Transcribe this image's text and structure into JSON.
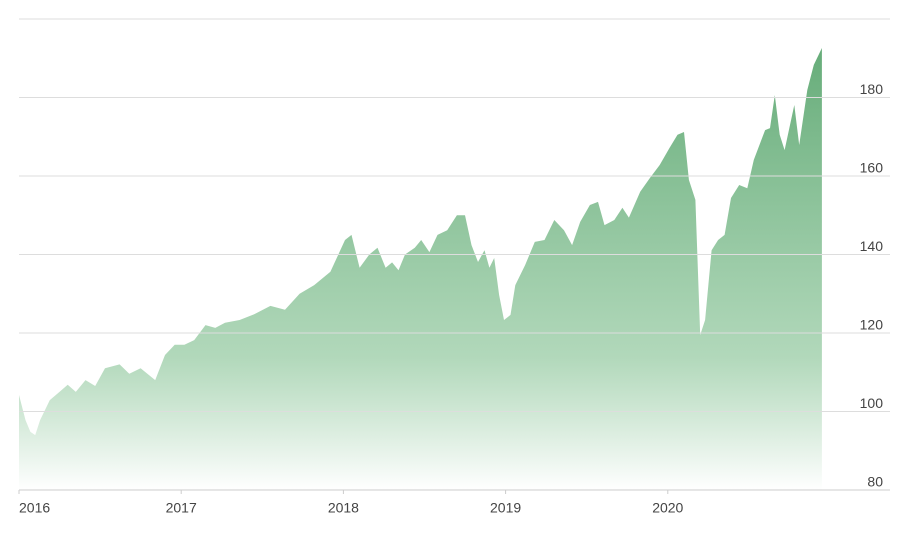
{
  "chart_data": {
    "type": "area",
    "color": "#5ea872",
    "xlim": [
      2016,
      2021.37
    ],
    "xticks": [
      2016,
      2017,
      2018,
      2019,
      2020
    ],
    "ylim": [
      80,
      200
    ],
    "yticks": [
      80,
      100,
      120,
      140,
      160,
      180
    ],
    "grid": true,
    "x": [
      2016.0,
      2016.04,
      2016.07,
      2016.1,
      2016.13,
      2016.19,
      2016.25,
      2016.3,
      2016.35,
      2016.41,
      2016.47,
      2016.53,
      2016.62,
      2016.68,
      2016.75,
      2016.84,
      2016.9,
      2016.96,
      2017.02,
      2017.08,
      2017.15,
      2017.21,
      2017.27,
      2017.36,
      2017.45,
      2017.55,
      2017.64,
      2017.73,
      2017.82,
      2017.92,
      2018.01,
      2018.05,
      2018.1,
      2018.16,
      2018.21,
      2018.26,
      2018.3,
      2018.34,
      2018.38,
      2018.44,
      2018.48,
      2018.53,
      2018.58,
      2018.64,
      2018.7,
      2018.75,
      2018.79,
      2018.83,
      2018.87,
      2018.9,
      2018.93,
      2018.96,
      2018.99,
      2019.03,
      2019.06,
      2019.12,
      2019.18,
      2019.24,
      2019.3,
      2019.36,
      2019.41,
      2019.46,
      2019.52,
      2019.57,
      2019.61,
      2019.67,
      2019.72,
      2019.76,
      2019.83,
      2019.89,
      2019.95,
      2020.01,
      2020.06,
      2020.1,
      2020.13,
      2020.17,
      2020.2,
      2020.23,
      2020.27,
      2020.31,
      2020.35,
      2020.39,
      2020.44,
      2020.49,
      2020.53,
      2020.6,
      2020.63,
      2020.66,
      2020.69,
      2020.72,
      2020.78,
      2020.81,
      2020.86,
      2020.9,
      2020.95
    ],
    "values": [
      104.2,
      97.8,
      94.8,
      94,
      97.8,
      102.9,
      105,
      106.8,
      105,
      108,
      106.5,
      111,
      112,
      109.6,
      111,
      108,
      114.4,
      117,
      117,
      118.2,
      122,
      121.3,
      122.6,
      123.3,
      124.8,
      126.9,
      125.9,
      130,
      132.2,
      135.6,
      143.7,
      145,
      136.6,
      140,
      141.7,
      136.6,
      138,
      136,
      140,
      141.7,
      143.7,
      140.6,
      145,
      146.2,
      150,
      150,
      142.4,
      138.1,
      141.1,
      136.6,
      139.1,
      129.7,
      123.3,
      124.6,
      132.2,
      137.3,
      143.2,
      143.7,
      148.8,
      146.2,
      142.4,
      148.3,
      152.6,
      153.4,
      147.5,
      148.8,
      151.9,
      149.4,
      156,
      159.5,
      162.8,
      167.1,
      170.5,
      171.2,
      159,
      153.9,
      119.5,
      123.3,
      141.1,
      143.7,
      145,
      154.4,
      157.7,
      156.9,
      164.1,
      171.7,
      172.2,
      180.6,
      170.5,
      166.6,
      178.1,
      167.9,
      181.9,
      188.3,
      192.6
    ]
  }
}
